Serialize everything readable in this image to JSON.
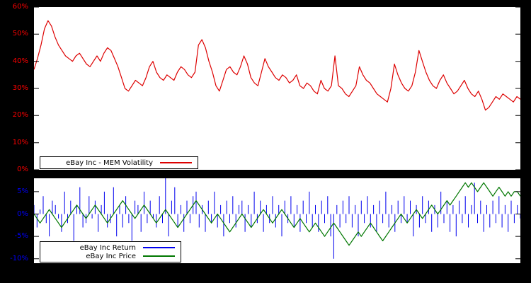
{
  "colors": {
    "page_background": "#000000",
    "plot_background": "#ffffff",
    "volatility_line": "#dd0000",
    "volatility_tick_labels": "#ff0000",
    "return_line": "#0000ee",
    "return_tick_labels": "#0000ff",
    "price_line": "#007700",
    "legend_border": "#000000"
  },
  "chart_data": [
    {
      "type": "line",
      "title": "eBay Inc - MEM Volatility",
      "xlabel": "",
      "ylabel": "",
      "ylim": [
        0,
        60
      ],
      "yticks": [
        0,
        10,
        20,
        30,
        40,
        50,
        60
      ],
      "ytick_suffix": "%",
      "tick_color": "#ff0000",
      "grid": false,
      "legend_position": "bottom-left",
      "series": [
        {
          "name": "eBay Inc - MEM Volatility",
          "color": "#dd0000",
          "style": "line",
          "values": [
            37,
            41,
            46,
            52,
            55,
            53,
            49,
            46,
            44,
            42,
            41,
            40,
            42,
            43,
            41,
            39,
            38,
            40,
            42,
            40,
            43,
            45,
            44,
            41,
            38,
            34,
            30,
            29,
            31,
            33,
            32,
            31,
            34,
            38,
            40,
            36,
            34,
            33,
            35,
            34,
            33,
            36,
            38,
            37,
            35,
            34,
            36,
            46,
            48,
            45,
            40,
            36,
            31,
            29,
            33,
            37,
            38,
            36,
            35,
            38,
            42,
            39,
            34,
            32,
            31,
            36,
            41,
            38,
            36,
            34,
            33,
            35,
            34,
            32,
            33,
            35,
            31,
            30,
            32,
            31,
            29,
            28,
            33,
            30,
            29,
            31,
            42,
            31,
            30,
            28,
            27,
            29,
            31,
            38,
            35,
            33,
            32,
            30,
            28,
            27,
            26,
            25,
            30,
            39,
            35,
            32,
            30,
            29,
            31,
            36,
            44,
            40,
            36,
            33,
            31,
            30,
            33,
            35,
            32,
            30,
            28,
            29,
            31,
            33,
            30,
            28,
            27,
            29,
            26,
            22,
            23,
            25,
            27,
            26,
            28,
            27,
            26,
            25,
            27,
            26
          ]
        }
      ]
    },
    {
      "type": "line",
      "title": "",
      "xlabel": "",
      "ylabel": "",
      "ylim": [
        -11,
        8
      ],
      "yticks": [
        5,
        0,
        -5,
        -10
      ],
      "ytick_suffix": "%",
      "tick_color": "#0000ff",
      "grid": false,
      "legend_position": "bottom-left",
      "series": [
        {
          "name": "eBay Inc Return",
          "color": "#0000ee",
          "style": "impulses",
          "values": [
            2,
            -3,
            1,
            4,
            -2,
            -5,
            3,
            2,
            -1,
            -4,
            5,
            -2,
            3,
            -6,
            2,
            6,
            -3,
            -2,
            4,
            -1,
            3,
            -4,
            2,
            5,
            -3,
            -2,
            6,
            -5,
            2,
            -3,
            4,
            -2,
            -6,
            3,
            2,
            -4,
            5,
            -2,
            3,
            -1,
            -3,
            4,
            -2,
            8,
            -5,
            3,
            6,
            -3,
            2,
            -4,
            3,
            -2,
            4,
            5,
            -3,
            2,
            -4,
            3,
            -2,
            5,
            -3,
            2,
            -5,
            3,
            -2,
            4,
            -3,
            2,
            3,
            -4,
            2,
            -3,
            5,
            -2,
            3,
            -4,
            2,
            -2,
            4,
            -3,
            2,
            -5,
            3,
            -2,
            4,
            -3,
            2,
            -4,
            3,
            -2,
            5,
            -3,
            2,
            -4,
            3,
            -2,
            4,
            -5,
            -10,
            2,
            -3,
            3,
            -2,
            4,
            -3,
            2,
            -5,
            3,
            -2,
            4,
            -3,
            2,
            -4,
            3,
            -2,
            5,
            -3,
            2,
            -4,
            3,
            -2,
            4,
            -2,
            3,
            -5,
            2,
            -3,
            4,
            -2,
            3,
            -4,
            2,
            -3,
            5,
            -2,
            3,
            -4,
            2,
            -5,
            3,
            -2,
            4,
            -3,
            2,
            7,
            -2,
            3,
            -4,
            2,
            -3,
            3,
            -2,
            4,
            -3,
            2,
            -4,
            3,
            -2,
            2,
            -1
          ]
        },
        {
          "name": "eBay Inc Price",
          "color": "#007700",
          "style": "line",
          "values": [
            0,
            -1,
            -2,
            -1,
            0,
            1,
            0,
            -1,
            -2,
            -3,
            -2,
            -1,
            0,
            1,
            2,
            1,
            0,
            -1,
            0,
            1,
            2,
            1,
            0,
            -1,
            -2,
            -1,
            0,
            1,
            2,
            3,
            2,
            1,
            0,
            -1,
            0,
            1,
            2,
            1,
            0,
            -1,
            -2,
            -1,
            0,
            1,
            0,
            -1,
            -2,
            -3,
            -2,
            -1,
            0,
            1,
            2,
            3,
            2,
            1,
            0,
            -1,
            -2,
            -1,
            0,
            -1,
            -2,
            -3,
            -4,
            -3,
            -2,
            -1,
            0,
            -1,
            -2,
            -3,
            -2,
            -1,
            0,
            1,
            0,
            -1,
            -2,
            -1,
            0,
            1,
            0,
            -1,
            -2,
            -3,
            -2,
            -1,
            -2,
            -3,
            -4,
            -3,
            -2,
            -3,
            -4,
            -5,
            -4,
            -3,
            -2,
            -3,
            -4,
            -5,
            -6,
            -7,
            -6,
            -5,
            -4,
            -5,
            -4,
            -3,
            -2,
            -3,
            -4,
            -5,
            -6,
            -5,
            -4,
            -3,
            -2,
            -1,
            0,
            -1,
            -2,
            -1,
            0,
            1,
            0,
            -1,
            0,
            1,
            2,
            1,
            0,
            1,
            2,
            3,
            2,
            3,
            4,
            5,
            6,
            7,
            6,
            7,
            6,
            5,
            6,
            7,
            6,
            5,
            4,
            5,
            6,
            5,
            4,
            5,
            4,
            5,
            5,
            4
          ]
        }
      ]
    }
  ]
}
